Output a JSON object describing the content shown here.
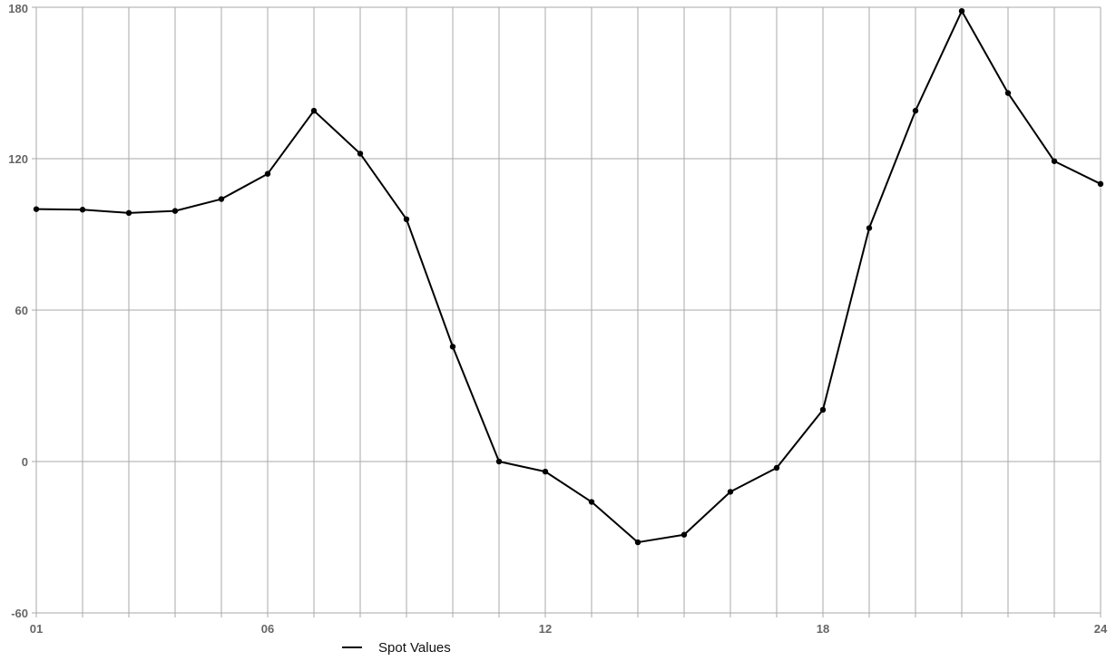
{
  "chart_data": {
    "type": "line",
    "title": "",
    "xlabel": "",
    "ylabel": "",
    "x": [
      "01",
      "02",
      "03",
      "04",
      "05",
      "06",
      "07",
      "08",
      "09",
      "10",
      "11",
      "12",
      "13",
      "14",
      "15",
      "16",
      "17",
      "18",
      "19",
      "20",
      "21",
      "22",
      "23",
      "24"
    ],
    "x_tick_labels": [
      "01",
      "06",
      "12",
      "18",
      "24"
    ],
    "y_ticks": [
      -60,
      0,
      60,
      120,
      180
    ],
    "ylim": [
      -60,
      180
    ],
    "grid": true,
    "legend_position": "bottom",
    "series": [
      {
        "name": "Spot Values",
        "color": "#000000",
        "values": [
          100,
          99.8,
          98.5,
          99.3,
          104,
          114,
          139,
          122,
          96,
          45.5,
          0,
          -4,
          -16,
          -32,
          -29,
          -12,
          -2.5,
          20.5,
          92.5,
          139,
          178.5,
          146,
          119,
          110
        ]
      }
    ]
  }
}
